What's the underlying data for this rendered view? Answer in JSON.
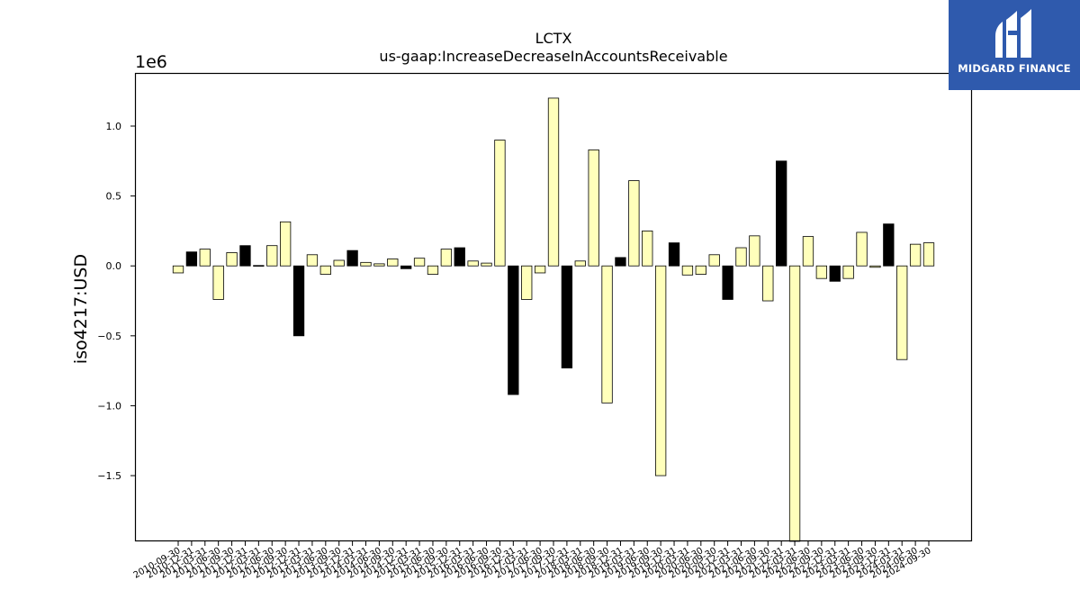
{
  "brand": {
    "name": "MIDGARD FINANCE",
    "bg_color": "#2f5aad",
    "icon": "midgard-logo-icon"
  },
  "chart_data": {
    "type": "bar",
    "title": "LCTX",
    "subtitle": "us-gaap:IncreaseDecreaseInAccountsReceivable",
    "xlabel": "",
    "ylabel": "iso4217:USD",
    "y_offset_label": "1e6",
    "ylim": [
      -1970000,
      1380000
    ],
    "yticks": [
      -1.5,
      -1.0,
      -0.5,
      0.0,
      0.5,
      1.0
    ],
    "ytick_labels": [
      "−1.5",
      "−1.0",
      "−0.5",
      "0.0",
      "0.5",
      "1.0"
    ],
    "grid": false,
    "colors": {
      "fy": "#000000",
      "quarter": "#ffffbb",
      "edge": "#000000"
    },
    "categories": [
      "2010-09-30",
      "2010-12-31",
      "2011-03-31",
      "2011-06-30",
      "2011-09-30",
      "2011-12-31",
      "2012-03-31",
      "2012-06-30",
      "2012-09-30",
      "2012-12-31",
      "2013-03-31",
      "2013-06-30",
      "2013-09-30",
      "2013-12-31",
      "2014-03-31",
      "2014-06-30",
      "2014-09-30",
      "2014-12-31",
      "2015-03-31",
      "2015-06-30",
      "2015-09-30",
      "2015-12-31",
      "2016-03-31",
      "2016-06-30",
      "2016-09-30",
      "2016-12-31",
      "2017-03-31",
      "2017-06-30",
      "2017-09-30",
      "2017-12-31",
      "2018-03-31",
      "2018-06-30",
      "2018-09-30",
      "2018-12-31",
      "2019-03-31",
      "2019-06-30",
      "2019-09-30",
      "2019-12-31",
      "2020-03-31",
      "2020-06-30",
      "2020-09-30",
      "2020-12-31",
      "2021-03-31",
      "2021-06-30",
      "2021-09-30",
      "2021-12-31",
      "2022-03-31",
      "2022-06-30",
      "2022-09-30",
      "2022-12-31",
      "2023-03-31",
      "2023-06-30",
      "2023-09-30",
      "2023-12-31",
      "2024-03-31",
      "2024-06-30",
      "2024-09-30"
    ],
    "values": [
      -50000,
      100000,
      120000,
      -240000,
      95000,
      145000,
      3000,
      145000,
      315000,
      -500000,
      80000,
      -60000,
      40000,
      110000,
      25000,
      15000,
      50000,
      -20000,
      55000,
      -60000,
      120000,
      130000,
      35000,
      20000,
      900000,
      -920000,
      -240000,
      -50000,
      1200000,
      -730000,
      35000,
      830000,
      -980000,
      60000,
      610000,
      250000,
      -1500000,
      165000,
      -65000,
      -60000,
      80000,
      -240000,
      130000,
      215000,
      -250000,
      750000,
      -1970000,
      210000,
      -90000,
      -110000,
      -90000,
      240000,
      -10000,
      300000,
      -670000,
      155000,
      165000
    ],
    "bar_kind": [
      "q",
      "fy",
      "q",
      "q",
      "q",
      "fy",
      "fy",
      "q",
      "q",
      "fy",
      "q",
      "q",
      "q",
      "fy",
      "q",
      "q",
      "q",
      "fy",
      "q",
      "q",
      "q",
      "fy",
      "q",
      "q",
      "q",
      "fy",
      "q",
      "q",
      "q",
      "fy",
      "q",
      "q",
      "q",
      "fy",
      "q",
      "q",
      "q",
      "fy",
      "q",
      "q",
      "q",
      "fy",
      "q",
      "q",
      "q",
      "fy",
      "q",
      "q",
      "q",
      "fy",
      "q",
      "q",
      "q",
      "fy",
      "q",
      "q",
      "q"
    ]
  }
}
